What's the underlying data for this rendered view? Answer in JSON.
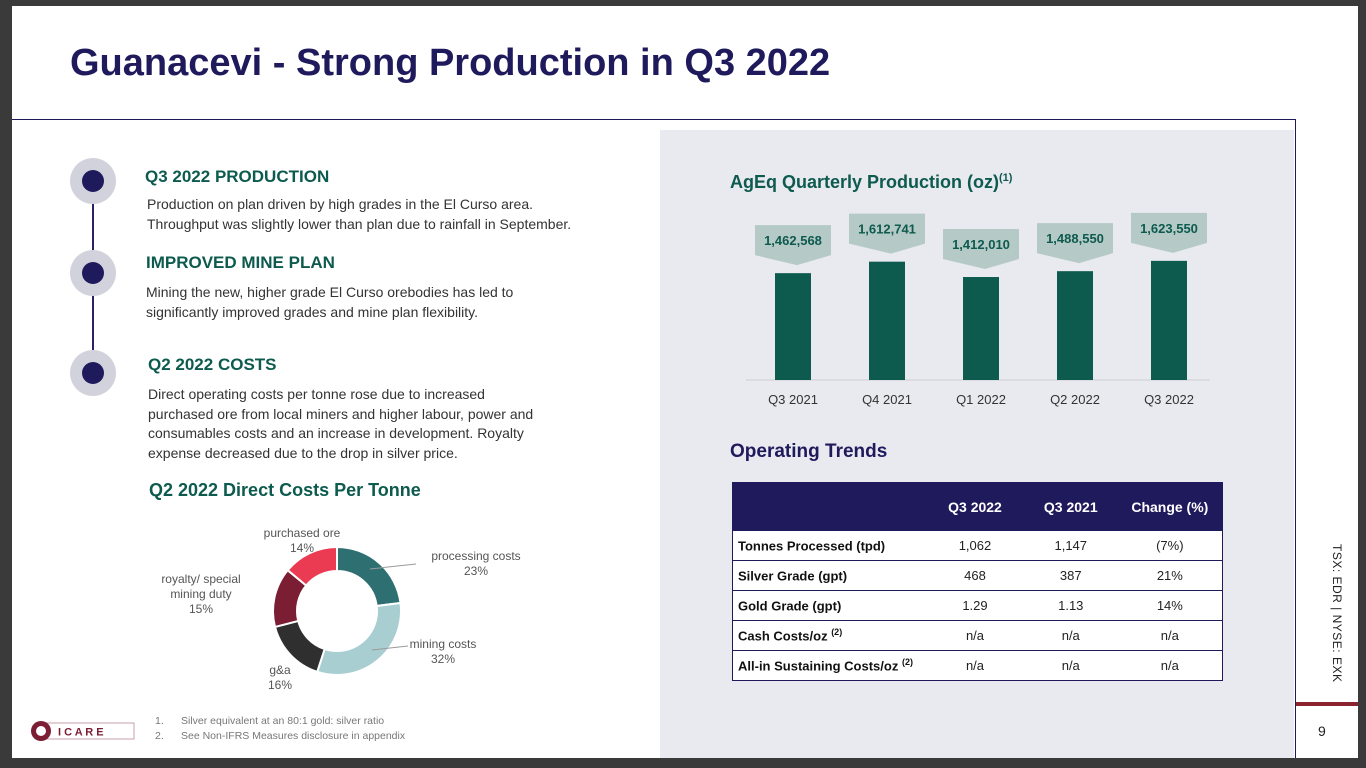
{
  "slide": {
    "title": "Guanacevi - Strong Production in Q3 2022",
    "page_number": "9",
    "ticker": "TSX: EDR  |  NYSE: EXK"
  },
  "sections": [
    {
      "heading": "Q3 2022 PRODUCTION",
      "lines": [
        "Production on plan driven by high grades in the El Curso area.",
        "Throughput was slightly lower than plan due to rainfall in September."
      ]
    },
    {
      "heading": "IMPROVED MINE PLAN",
      "lines": [
        "Mining the new, higher grade El Curso orebodies has led to",
        "significantly improved grades and mine plan flexibility."
      ]
    },
    {
      "heading": "Q2 2022 COSTS",
      "lines": [
        "Direct operating costs per tonne rose due to increased",
        "purchased ore from local miners and higher labour, power and",
        "consumables costs and an increase in development. Royalty",
        "expense decreased due to the drop in silver price."
      ]
    }
  ],
  "pie": {
    "title": "Q2 2022 Direct Costs Per Tonne",
    "slices": [
      {
        "name": "processing costs",
        "pct": "23%",
        "value": 23,
        "color": "#2e7072"
      },
      {
        "name": "mining costs",
        "pct": "32%",
        "value": 32,
        "color": "#a8ced2"
      },
      {
        "name": "g&a",
        "pct": "16%",
        "value": 16,
        "color": "#2f2f2f"
      },
      {
        "name": "royalty/ special",
        "name2": "mining duty",
        "pct": "15%",
        "value": 15,
        "color": "#7b1d33"
      },
      {
        "name": "purchased ore",
        "pct": "14%",
        "value": 14,
        "color": "#ea3b52"
      }
    ]
  },
  "chart_data": {
    "type": "bar",
    "title": "AgEq Quarterly Production (oz)",
    "title_note": "(1)",
    "categories": [
      "Q3 2021",
      "Q4 2021",
      "Q1 2022",
      "Q2 2022",
      "Q3 2022"
    ],
    "values": [
      1462568,
      1612741,
      1412010,
      1488550,
      1623550
    ],
    "value_labels": [
      "1,462,568",
      "1,612,741",
      "1,412,010",
      "1,488,550",
      "1,623,550"
    ],
    "ylim": [
      0,
      1700000
    ],
    "bar_color": "#0d5a4e",
    "label_bg": "#b5c9c6",
    "grid": false
  },
  "operating_trends": {
    "title": "Operating Trends",
    "headers": [
      "",
      "Q3 2022",
      "Q3 2021",
      "Change (%)"
    ],
    "rows": [
      {
        "label": "Tonnes Processed (tpd)",
        "note": "",
        "cells": [
          "1,062",
          "1,147",
          "(7%)"
        ]
      },
      {
        "label": "Silver Grade (gpt)",
        "note": "",
        "cells": [
          "468",
          "387",
          "21%"
        ]
      },
      {
        "label": "Gold Grade (gpt)",
        "note": "",
        "cells": [
          "1.29",
          "1.13",
          "14%"
        ]
      },
      {
        "label": "Cash Costs/oz ",
        "note": "(2)",
        "cells": [
          "n/a",
          "n/a",
          "n/a"
        ]
      },
      {
        "label": "All-in Sustaining Costs/oz ",
        "note": "(2)",
        "cells": [
          "n/a",
          "n/a",
          "n/a"
        ]
      }
    ]
  },
  "footnotes": [
    {
      "num": "1.",
      "text": "Silver equivalent at an 80:1 gold: silver ratio"
    },
    {
      "num": "2.",
      "text": "See Non-IFRS Measures disclosure in appendix"
    }
  ],
  "logo": {
    "text": "I C A R E",
    "colors": {
      "maroon": "#7b1d33",
      "border": "#c9a0a8"
    }
  }
}
